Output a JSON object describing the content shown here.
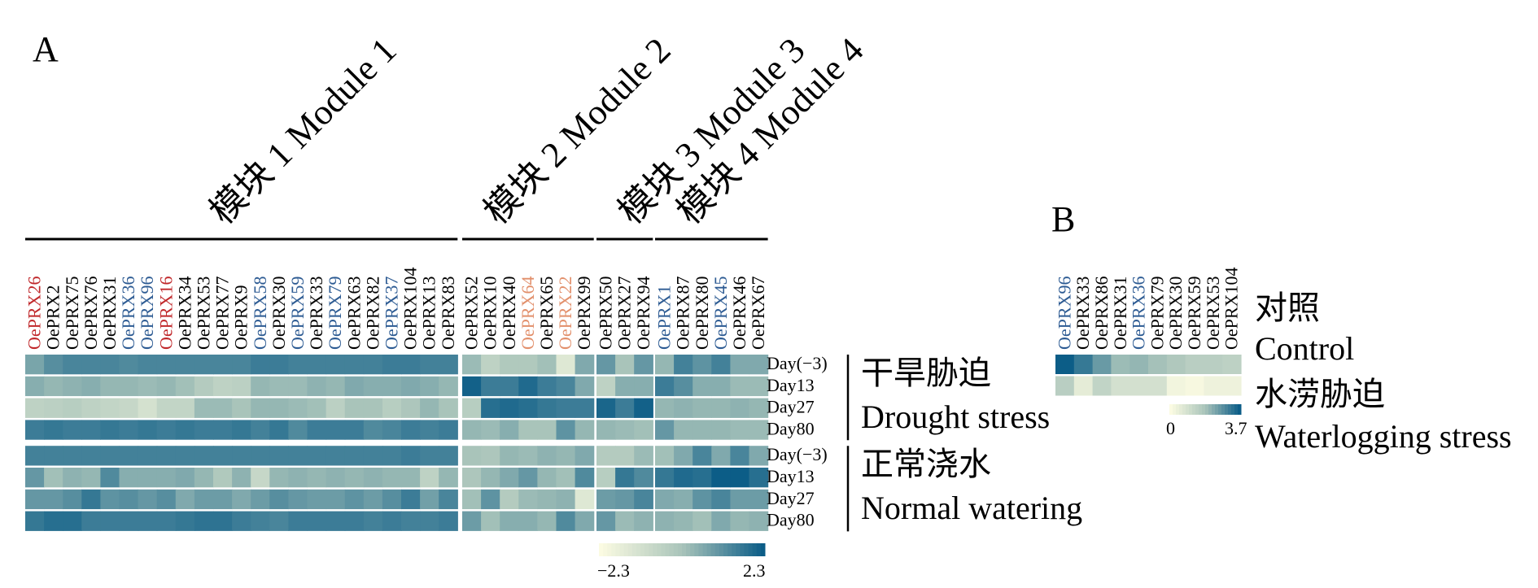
{
  "panel_a_letter": "A",
  "panel_b_letter": "B",
  "colors": {
    "low": "#fbfbe2",
    "mid": "#a9c4ba",
    "high": "#0c5d87",
    "red_gene": "#c0282b",
    "blue_gene": "#2d5b93",
    "orange_gene": "#e2906c",
    "black_gene": "#000000"
  },
  "modules": [
    {
      "label": "模块 1 Module 1",
      "start": 0,
      "end": 23
    },
    {
      "label": "模块 2 Module 2",
      "start": 23,
      "end": 30
    },
    {
      "label": "模块 3 Module 3",
      "start": 30,
      "end": 33
    },
    {
      "label": "模块 4 Module 4",
      "start": 33,
      "end": 39
    }
  ],
  "genes": [
    {
      "name": "OePRX26",
      "color": "red"
    },
    {
      "name": "OePRX2",
      "color": "black"
    },
    {
      "name": "OePRX75",
      "color": "black"
    },
    {
      "name": "OePRX76",
      "color": "black"
    },
    {
      "name": "OePRX31",
      "color": "black"
    },
    {
      "name": "OePRX36",
      "color": "blue"
    },
    {
      "name": "OePRX96",
      "color": "blue"
    },
    {
      "name": "OePRX16",
      "color": "red"
    },
    {
      "name": "OePRX34",
      "color": "black"
    },
    {
      "name": "OePRX53",
      "color": "black"
    },
    {
      "name": "OePRX77",
      "color": "black"
    },
    {
      "name": "OePRX9",
      "color": "black"
    },
    {
      "name": "OePRX58",
      "color": "blue"
    },
    {
      "name": "OePRX30",
      "color": "black"
    },
    {
      "name": "OePRX59",
      "color": "blue"
    },
    {
      "name": "OePRX33",
      "color": "black"
    },
    {
      "name": "OePRX79",
      "color": "blue"
    },
    {
      "name": "OePRX63",
      "color": "black"
    },
    {
      "name": "OePRX82",
      "color": "black"
    },
    {
      "name": "OePRX37",
      "color": "blue"
    },
    {
      "name": "OePRX104",
      "color": "black"
    },
    {
      "name": "OePRX13",
      "color": "black"
    },
    {
      "name": "OePRX83",
      "color": "black"
    },
    {
      "name": "OePRX52",
      "color": "black"
    },
    {
      "name": "OePRX10",
      "color": "black"
    },
    {
      "name": "OePRX40",
      "color": "black"
    },
    {
      "name": "OePRX64",
      "color": "orange"
    },
    {
      "name": "OePRX65",
      "color": "black"
    },
    {
      "name": "OePRX22",
      "color": "orange"
    },
    {
      "name": "OePRX99",
      "color": "black"
    },
    {
      "name": "OePRX50",
      "color": "black"
    },
    {
      "name": "OePRX27",
      "color": "black"
    },
    {
      "name": "OePRX94",
      "color": "black"
    },
    {
      "name": "OePRX1",
      "color": "blue"
    },
    {
      "name": "OePRX87",
      "color": "black"
    },
    {
      "name": "OePRX80",
      "color": "black"
    },
    {
      "name": "OePRX45",
      "color": "blue"
    },
    {
      "name": "OePRX46",
      "color": "black"
    },
    {
      "name": "OePRX67",
      "color": "black"
    }
  ],
  "rows": [
    "Day(−3)",
    "Day13",
    "Day27",
    "Day80",
    "Day(−3)",
    "Day13",
    "Day27",
    "Day80"
  ],
  "groups": [
    {
      "cn": "干旱胁迫",
      "en": "Drought stress"
    },
    {
      "cn": "正常浇水",
      "en": "Normal watering"
    }
  ],
  "chart_data": [
    {
      "type": "heatmap",
      "panel": "A",
      "scale": {
        "min": -2.3,
        "max": 2.3,
        "min_label": "−2.3",
        "max_label": "2.3"
      },
      "values": [
        [
          0.7,
          1.2,
          1.4,
          1.4,
          1.4,
          1.3,
          1.4,
          1.4,
          1.4,
          1.4,
          1.4,
          1.4,
          1.6,
          1.6,
          1.5,
          1.5,
          1.5,
          1.5,
          1.5,
          1.6,
          1.6,
          1.5,
          1.5,
          0.2,
          -0.6,
          -0.2,
          -0.2,
          0.1,
          -1.5,
          0.6,
          1.0,
          0.0,
          1.0,
          0.3,
          1.5,
          1.1,
          1.5,
          0.6,
          0.6
        ],
        [
          0.5,
          0.3,
          0.4,
          0.5,
          0.3,
          0.3,
          0.2,
          0.3,
          0.1,
          -0.3,
          -0.6,
          -0.5,
          0.3,
          0.2,
          0.2,
          0.4,
          0.3,
          0.6,
          0.5,
          0.5,
          0.6,
          0.5,
          0.3,
          2.2,
          1.6,
          1.6,
          2.0,
          1.6,
          1.4,
          0.6,
          -0.6,
          0.5,
          0.5,
          1.6,
          1.2,
          0.5,
          0.5,
          0.2,
          0.2
        ],
        [
          -0.6,
          -0.5,
          -0.4,
          -0.6,
          -0.7,
          -0.8,
          -1.2,
          -0.7,
          -0.7,
          0.2,
          0.2,
          0.0,
          0.3,
          0.3,
          0.2,
          0.1,
          -0.5,
          0.0,
          0.0,
          -0.4,
          -0.1,
          0.3,
          0.0,
          -0.4,
          1.9,
          2.0,
          1.9,
          1.7,
          1.6,
          1.6,
          2.1,
          1.6,
          2.2,
          0.3,
          0.4,
          0.3,
          0.3,
          0.4,
          0.3
        ],
        [
          1.6,
          1.7,
          1.6,
          1.6,
          1.7,
          1.6,
          1.7,
          1.6,
          1.7,
          1.6,
          1.6,
          1.7,
          1.5,
          1.7,
          1.3,
          1.6,
          1.6,
          1.6,
          1.3,
          1.4,
          1.6,
          1.5,
          1.6,
          0.3,
          0.2,
          0.5,
          0.0,
          0.0,
          1.1,
          0.3,
          0.3,
          0.2,
          0.1,
          1.0,
          0.3,
          0.3,
          0.3,
          0.2,
          0.2
        ],
        [
          1.5,
          1.5,
          1.5,
          1.5,
          1.5,
          1.5,
          1.5,
          1.5,
          1.5,
          1.5,
          1.5,
          1.5,
          1.5,
          1.5,
          1.5,
          1.5,
          1.5,
          1.5,
          1.5,
          1.5,
          1.6,
          1.5,
          1.5,
          0.0,
          -0.1,
          0.3,
          0.2,
          0.4,
          0.3,
          0.6,
          -0.3,
          -0.3,
          0.2,
          0.1,
          0.6,
          1.4,
          0.6,
          1.4,
          0.6
        ],
        [
          1.0,
          0.1,
          0.4,
          0.3,
          1.3,
          0.5,
          0.5,
          0.5,
          0.6,
          0.3,
          -0.2,
          0.4,
          -0.8,
          0.3,
          0.4,
          0.3,
          0.4,
          0.3,
          0.4,
          0.3,
          0.3,
          -0.6,
          0.3,
          -0.1,
          0.3,
          0.6,
          1.0,
          0.3,
          0.1,
          1.3,
          -0.4,
          1.7,
          1.3,
          1.7,
          2.0,
          1.9,
          2.3,
          2.3,
          1.9
        ],
        [
          1.0,
          1.0,
          1.2,
          1.7,
          1.1,
          1.2,
          1.0,
          1.2,
          0.6,
          0.9,
          0.9,
          0.6,
          0.9,
          1.2,
          1.0,
          0.9,
          0.9,
          1.1,
          0.9,
          1.2,
          1.6,
          0.8,
          1.4,
          0.1,
          1.1,
          -0.3,
          0.2,
          0.3,
          0.4,
          -1.5,
          0.9,
          1.0,
          1.4,
          0.6,
          0.5,
          1.1,
          1.4,
          0.9,
          0.9
        ],
        [
          1.7,
          1.9,
          1.9,
          1.6,
          1.6,
          1.6,
          1.6,
          1.6,
          1.7,
          1.8,
          1.8,
          1.6,
          1.5,
          1.4,
          1.6,
          1.6,
          1.6,
          1.6,
          1.5,
          1.6,
          1.5,
          1.5,
          1.6,
          0.9,
          0.1,
          0.5,
          0.5,
          0.3,
          1.3,
          0.6,
          1.0,
          0.2,
          0.4,
          0.4,
          0.3,
          0.1,
          0.6,
          0.3,
          0.4
        ]
      ]
    },
    {
      "type": "heatmap",
      "panel": "B",
      "scale": {
        "min": 0,
        "max": 3.7,
        "min_label": "0",
        "max_label": "3.7"
      },
      "genes": [
        {
          "name": "OePRX96",
          "color": "blue"
        },
        {
          "name": "OePRX33",
          "color": "black"
        },
        {
          "name": "OePRX86",
          "color": "black"
        },
        {
          "name": "OePRX31",
          "color": "black"
        },
        {
          "name": "OePRX36",
          "color": "blue"
        },
        {
          "name": "OePRX79",
          "color": "black"
        },
        {
          "name": "OePRX30",
          "color": "black"
        },
        {
          "name": "OePRX59",
          "color": "black"
        },
        {
          "name": "OePRX53",
          "color": "black"
        },
        {
          "name": "OePRX104",
          "color": "black"
        }
      ],
      "rows": [
        {
          "cn": "对照",
          "en": "Control"
        },
        {
          "cn": "水涝胁迫",
          "en": "Waterlogging stress"
        }
      ],
      "values": [
        [
          3.7,
          3.2,
          2.6,
          2.0,
          2.1,
          1.9,
          1.7,
          1.5,
          1.5,
          1.4
        ],
        [
          1.5,
          0.5,
          1.3,
          0.9,
          0.9,
          0.9,
          0.2,
          0.1,
          0.3,
          0.3
        ]
      ]
    }
  ]
}
